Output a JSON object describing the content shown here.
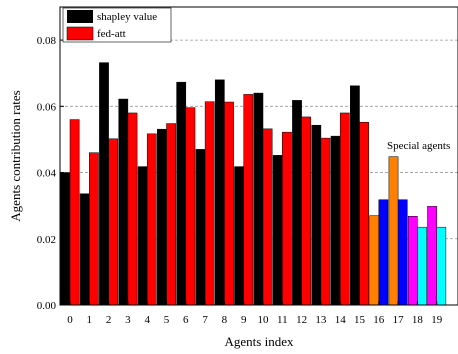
{
  "chart_data": {
    "type": "bar",
    "xlabel": "Agents index",
    "ylabel": "Agents contribution rates",
    "ylim": [
      0,
      0.09
    ],
    "yticks": [
      "0.00",
      "0.02",
      "0.04",
      "0.06",
      "0.08"
    ],
    "ytick_values": [
      0,
      0.02,
      0.04,
      0.06,
      0.08
    ],
    "grid": "horizontal dashed",
    "legend_position": "top-left",
    "categories": [
      "0",
      "1",
      "2",
      "3",
      "4",
      "5",
      "6",
      "7",
      "8",
      "9",
      "10",
      "11",
      "12",
      "13",
      "14",
      "15",
      "16",
      "17",
      "18",
      "19"
    ],
    "series": [
      {
        "name": "shapley value",
        "color": "#000000",
        "values": [
          0.04,
          0.0336,
          0.0732,
          0.0622,
          0.0418,
          0.0531,
          0.0673,
          0.047,
          0.068,
          0.0418,
          0.064,
          0.0452,
          0.0618,
          0.0543,
          0.051,
          0.0662,
          0.027,
          0.0448,
          0.0268,
          0.0298
        ]
      },
      {
        "name": "fed-att",
        "color": "#ff0000",
        "values": [
          0.056,
          0.046,
          0.0502,
          0.058,
          0.0517,
          0.0548,
          0.0596,
          0.0614,
          0.0613,
          0.0636,
          0.0532,
          0.0522,
          0.0568,
          0.0504,
          0.058,
          0.0552,
          0.0318,
          0.0318,
          0.0235,
          0.0235
        ]
      }
    ],
    "special_colors": {
      "16": [
        "#ff8000",
        "#0000ff"
      ],
      "17": [
        "#ff8000",
        "#0000ff"
      ],
      "18": [
        "#ff00ff",
        "#00ffff"
      ],
      "19": [
        "#ff00ff",
        "#00ffff"
      ]
    },
    "annotation": "Special agents"
  }
}
